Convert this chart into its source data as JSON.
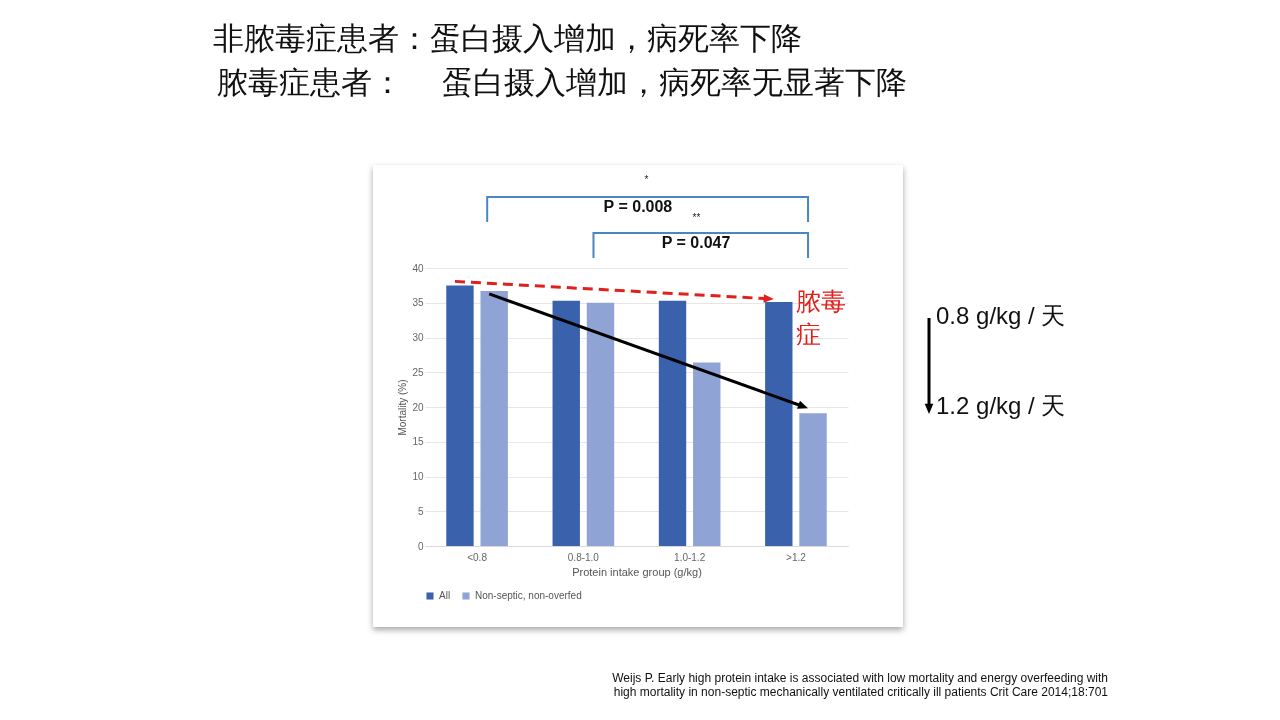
{
  "chart_data": {
    "type": "bar",
    "title": "非脓毒症患者：蛋白摄入增加，病死率下降",
    "subtitle": "脓毒症患者：    蛋白摄入增加，病死率无显著下降",
    "xlabel": "Protein intake group (g/kg)",
    "ylabel": "Mortality (%)",
    "categories": [
      "<0.8",
      "0.8-1.0",
      "1.0-1.2",
      ">1.2"
    ],
    "series": [
      {
        "name": "All",
        "color": "#3a61ab",
        "values": [
          37.5,
          35.3,
          35.3,
          35.1
        ]
      },
      {
        "name": "Non-septic, non-overfed",
        "color": "#8fa3d4",
        "values": [
          36.7,
          35.0,
          26.4,
          19.1
        ]
      }
    ],
    "ylim": [
      0,
      40
    ],
    "yticks": [
      0,
      5,
      10,
      15,
      20,
      25,
      30,
      35,
      40
    ],
    "grid": "y",
    "legend": "bottom",
    "annotations": [
      {
        "text": "脓毒症",
        "x": ">1.2",
        "y": 35.1
      },
      "*",
      "P = 0.008",
      "**",
      "P = 0.047",
      "0.8 g/kg / 天",
      "1.2 g/kg / 天",
      "Weijs P. Early high protein intake is associated with low mortality and energy overfeeding with\nhigh mortality in non-septic mechanically ventilated critically ill patients   Crit Care 2014;18:701"
    ]
  }
}
